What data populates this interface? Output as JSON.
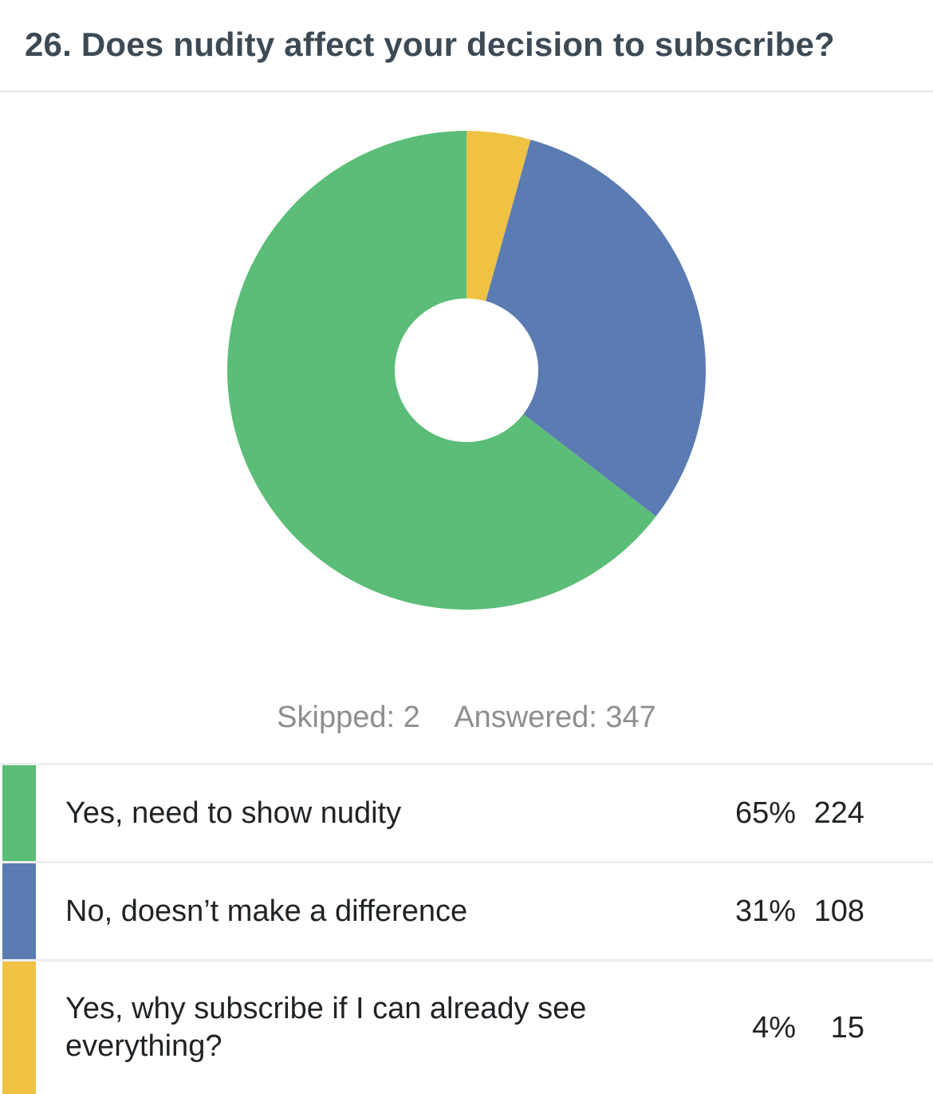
{
  "question": {
    "title": "26. Does nudity affect your decision to subscribe?"
  },
  "summary": {
    "skipped": "Skipped: 2",
    "answered": "Answered: 347"
  },
  "colors": {
    "green": "#5bbd77",
    "blue": "#5b7bb3",
    "yellow": "#efc244"
  },
  "chart_data": {
    "type": "pie",
    "categories": [
      "Yes, need to show nudity",
      "No, doesn’t make a difference",
      "Yes, why subscribe if I can already see everything?"
    ],
    "values": [
      224,
      108,
      15
    ],
    "percentages": [
      "65%",
      "31%",
      "4%"
    ],
    "colors": [
      "#5bbd77",
      "#5b7bb3",
      "#efc244"
    ],
    "total": 347,
    "title": "26. Does nudity affect your decision to subscribe?",
    "legend": "bottom"
  },
  "legend": {
    "rows": [
      {
        "label": "Yes, need to show nudity",
        "percent": "65%",
        "count": "224"
      },
      {
        "label": "No, doesn’t make a difference",
        "percent": "31%",
        "count": "108"
      },
      {
        "label": "Yes, why subscribe if I can already see everything?",
        "percent": "4%",
        "count": "15"
      }
    ]
  }
}
